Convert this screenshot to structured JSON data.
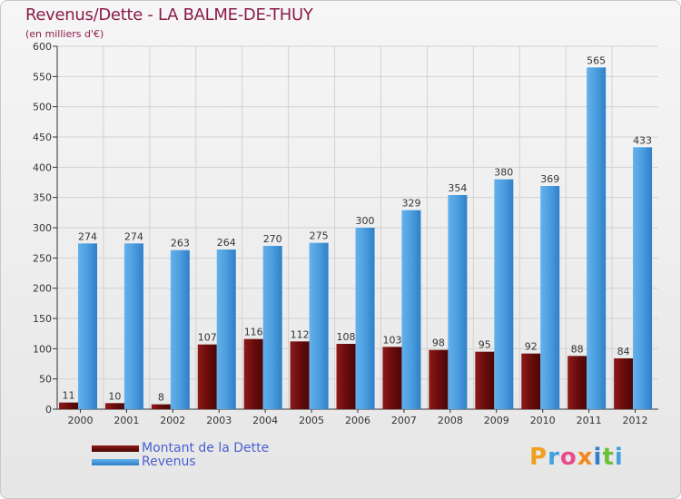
{
  "header": {
    "title": "Revenus/Dette - LA BALME-DE-THUY",
    "unit": "(en milliers d'€)"
  },
  "chart_data": {
    "type": "bar",
    "title": "Revenus/Dette - LA BALME-DE-THUY",
    "ylabel": "(en milliers d'€)",
    "xlabel": "",
    "ylim": [
      0,
      600
    ],
    "yticks": [
      0,
      50,
      100,
      150,
      200,
      250,
      300,
      350,
      400,
      450,
      500,
      550,
      600
    ],
    "grid": true,
    "categories": [
      "2000",
      "2001",
      "2002",
      "2003",
      "2004",
      "2005",
      "2006",
      "2007",
      "2008",
      "2009",
      "2010",
      "2011",
      "2012"
    ],
    "series": [
      {
        "name": "Montant de la Dette",
        "color": "#7a1212",
        "values": [
          11,
          10,
          8,
          107,
          116,
          112,
          108,
          103,
          98,
          95,
          92,
          88,
          84
        ]
      },
      {
        "name": "Revenus",
        "color": "#4f9fe0",
        "values": [
          274,
          274,
          263,
          264,
          270,
          275,
          300,
          329,
          354,
          380,
          369,
          565,
          433
        ]
      }
    ],
    "legend": "bottom-left"
  },
  "legend": {
    "items": [
      {
        "label": "Montant de la Dette",
        "color": "#7a1212"
      },
      {
        "label": "Revenus",
        "color": "#4f9fe0"
      }
    ]
  },
  "brand": {
    "letters": [
      "P",
      "r",
      "o",
      "x",
      "i",
      "t",
      "i"
    ],
    "colors": [
      "#f0a020",
      "#3fa3e0",
      "#e84c8b",
      "#f08a1e",
      "#2f7fd1",
      "#6bbf3a",
      "#3fa3e0"
    ]
  }
}
